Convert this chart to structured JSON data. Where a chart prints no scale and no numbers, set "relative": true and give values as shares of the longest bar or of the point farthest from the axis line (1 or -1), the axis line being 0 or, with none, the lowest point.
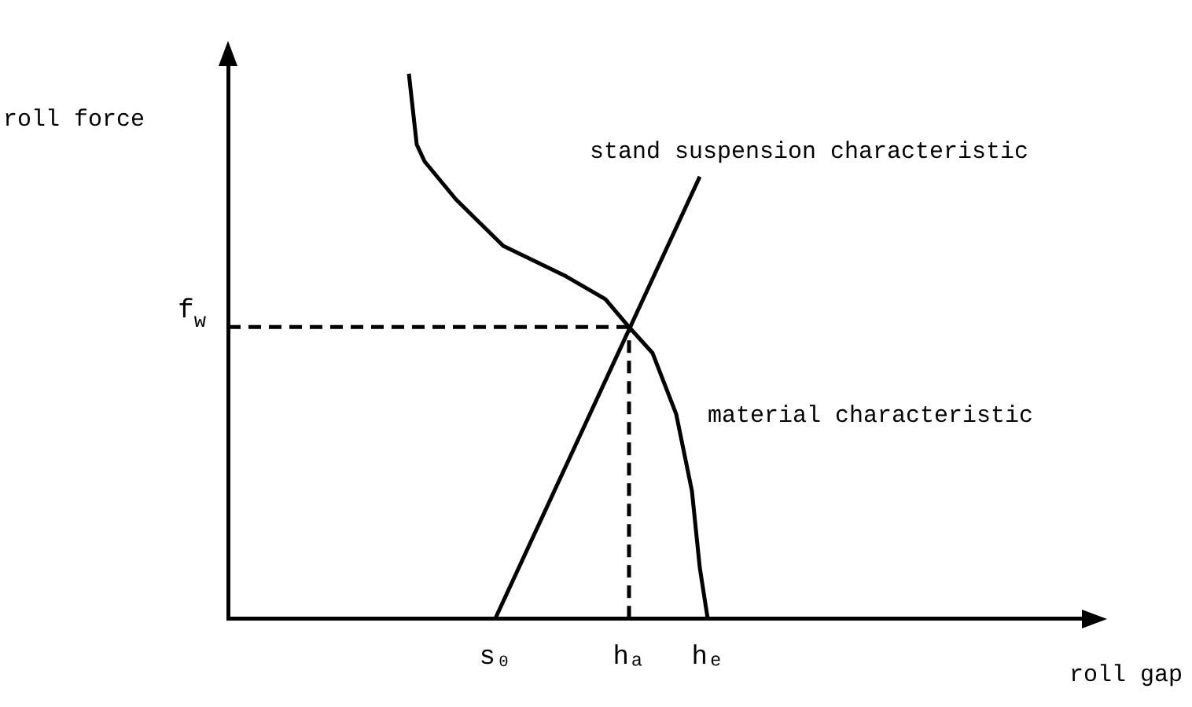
{
  "chart_data": {
    "type": "line",
    "relative": true,
    "xlabel": "roll gap",
    "ylabel": "roll force",
    "grid": false,
    "legend": false,
    "marker": "none",
    "categories": [
      null,
      null,
      null,
      null,
      null,
      null,
      null,
      null,
      null,
      null,
      null,
      null,
      null,
      null,
      null,
      null,
      null,
      null,
      null,
      null,
      null,
      null,
      null,
      null,
      null,
      null,
      null,
      null,
      null,
      null,
      null,
      null,
      null,
      null,
      "s₀",
      null,
      null,
      null,
      null,
      null,
      null,
      null,
      null,
      null,
      null,
      null,
      null,
      null,
      null,
      null,
      null,
      "hₐ",
      null,
      null,
      null,
      null,
      null,
      null,
      null,
      null,
      null,
      "hₑ",
      null,
      null,
      null,
      null,
      null,
      null,
      null,
      null,
      null,
      null,
      null,
      null,
      null,
      null,
      null,
      null,
      null,
      null,
      null,
      null,
      null,
      null,
      null,
      null,
      null,
      null,
      null,
      null,
      null,
      null,
      null,
      null,
      null,
      null,
      null,
      null,
      null,
      null,
      null,
      null,
      null,
      null,
      null,
      null,
      null,
      null,
      null,
      null
    ],
    "series": [
      {
        "name": "stand suspension characteristic",
        "color": "#000000",
        "values": [
          null,
          null,
          null,
          null,
          null,
          null,
          null,
          null,
          null,
          null,
          null,
          null,
          null,
          null,
          null,
          null,
          null,
          null,
          null,
          null,
          null,
          null,
          null,
          null,
          null,
          null,
          null,
          null,
          null,
          null,
          null,
          null,
          null,
          null,
          0,
          null,
          null,
          null,
          null,
          null,
          null,
          null,
          null,
          null,
          null,
          null,
          null,
          null,
          null,
          null,
          null,
          null,
          null,
          null,
          null,
          null,
          null,
          null,
          null,
          null,
          0.811,
          null,
          null,
          null,
          null,
          null,
          null,
          null,
          null,
          null,
          null,
          null,
          null,
          null,
          null,
          null,
          null,
          null,
          null,
          null,
          null,
          null,
          null,
          null,
          null,
          null,
          null,
          null,
          null,
          null,
          null,
          null,
          null,
          null,
          null,
          null,
          null,
          null,
          null,
          null,
          null,
          null,
          null,
          null,
          null,
          null,
          null,
          null,
          null,
          null
        ]
      },
      {
        "name": "material characteristic",
        "color": "#000000",
        "values": [
          null,
          null,
          null,
          null,
          null,
          null,
          null,
          null,
          null,
          null,
          null,
          null,
          null,
          null,
          null,
          null,
          null,
          null,
          null,
          null,
          null,
          null,
          null,
          1,
          0.87,
          0.839,
          null,
          null,
          null,
          0.769,
          null,
          null,
          null,
          null,
          null,
          0.684,
          null,
          null,
          null,
          null,
          null,
          null,
          null,
          0.628,
          null,
          null,
          null,
          null,
          0.586,
          null,
          null,
          0.535,
          null,
          null,
          0.487,
          null,
          null,
          0.375,
          null,
          0.234,
          0.093,
          0,
          null,
          null,
          null,
          null,
          null,
          null,
          null,
          null,
          null,
          null,
          null,
          null,
          null,
          null,
          null,
          null,
          null,
          null,
          null,
          null,
          null,
          null,
          null,
          null,
          null,
          null,
          null,
          null,
          null,
          null,
          null,
          null,
          null,
          null,
          null,
          null,
          null,
          null,
          null,
          null,
          null,
          null,
          null,
          null,
          null,
          null,
          null,
          null
        ]
      }
    ],
    "ref_lines": [
      {
        "axis": "y",
        "value": 0.535,
        "label": "f$_{w}$",
        "color": "#000000",
        "line_style": "dashed"
      },
      {
        "axis": "x",
        "value": "hₐ",
        "color": "#000000",
        "line_style": "dashed"
      }
    ]
  }
}
